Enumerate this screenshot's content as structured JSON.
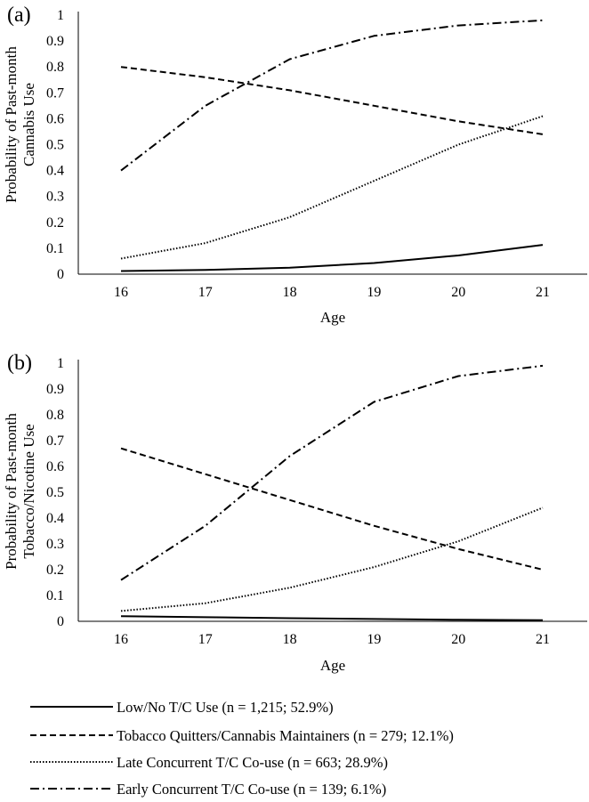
{
  "chart_data": [
    {
      "type": "line",
      "panel_label": "(a)",
      "ylabel_lines": [
        "Probability of Past-month",
        "Cannabis Use"
      ],
      "xlabel": "Age",
      "x": [
        16,
        17,
        18,
        19,
        20,
        21
      ],
      "x_tick_labels": [
        "16",
        "17",
        "18",
        "19",
        "20",
        "21"
      ],
      "ylim": [
        0,
        1
      ],
      "y_tick_labels": [
        "0",
        "0.1",
        "0.2",
        "0.3",
        "0.4",
        "0.5",
        "0.6",
        "0.7",
        "0.8",
        "0.9",
        "1"
      ],
      "grid": false,
      "series": [
        {
          "key": "low",
          "values": [
            0.012,
            0.016,
            0.025,
            0.043,
            0.072,
            0.113
          ]
        },
        {
          "key": "quit",
          "values": [
            0.8,
            0.76,
            0.71,
            0.65,
            0.59,
            0.54
          ]
        },
        {
          "key": "late",
          "values": [
            0.06,
            0.12,
            0.22,
            0.36,
            0.5,
            0.61
          ]
        },
        {
          "key": "early",
          "values": [
            0.4,
            0.65,
            0.83,
            0.92,
            0.96,
            0.98
          ]
        }
      ]
    },
    {
      "type": "line",
      "panel_label": "(b)",
      "ylabel_lines": [
        "Probability of Past-month",
        "Tobacco/Nicotine Use"
      ],
      "xlabel": "Age",
      "x": [
        16,
        17,
        18,
        19,
        20,
        21
      ],
      "x_tick_labels": [
        "16",
        "17",
        "18",
        "19",
        "20",
        "21"
      ],
      "ylim": [
        0,
        1
      ],
      "y_tick_labels": [
        "0",
        "0.1",
        "0.2",
        "0.3",
        "0.4",
        "0.5",
        "0.6",
        "0.7",
        "0.8",
        "0.9",
        "1"
      ],
      "grid": false,
      "series": [
        {
          "key": "low",
          "values": [
            0.02,
            0.016,
            0.012,
            0.009,
            0.006,
            0.004
          ]
        },
        {
          "key": "quit",
          "values": [
            0.67,
            0.57,
            0.47,
            0.37,
            0.28,
            0.2
          ]
        },
        {
          "key": "late",
          "values": [
            0.04,
            0.07,
            0.13,
            0.21,
            0.31,
            0.44
          ]
        },
        {
          "key": "early",
          "values": [
            0.16,
            0.37,
            0.64,
            0.85,
            0.95,
            0.99
          ]
        }
      ]
    }
  ],
  "legend": {
    "placement": "bottom",
    "entries": [
      {
        "key": "low",
        "label": "Low/No T/C Use (n = 1,215; 52.9%)"
      },
      {
        "key": "quit",
        "label": "Tobacco Quitters/Cannabis Maintainers (n = 279; 12.1%)"
      },
      {
        "key": "late",
        "label": "Late Concurrent T/C Co-use (n = 663; 28.9%)"
      },
      {
        "key": "early",
        "label": "Early Concurrent T/C Co-use (n = 139; 6.1%)"
      }
    ]
  },
  "line_styles": {
    "low": {
      "color": "#000000",
      "dash": "none",
      "width": 2
    },
    "quit": {
      "color": "#000000",
      "dash": "7,4",
      "width": 2
    },
    "late": {
      "color": "#000000",
      "dash": "1.5,2",
      "width": 2
    },
    "early": {
      "color": "#000000",
      "dash": "10,4,2,4",
      "width": 2
    }
  }
}
